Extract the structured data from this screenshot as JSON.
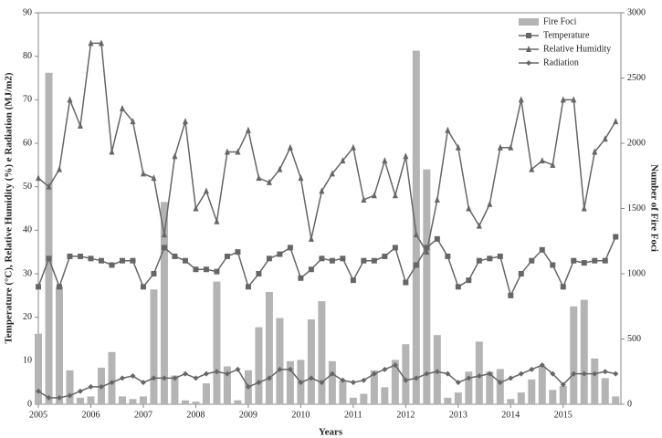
{
  "chart_data": {
    "type": "combo",
    "x_label": "Years",
    "y_label": "Temperature (°C), Relative Humidity (%) e Radiation (MJ/m2)",
    "y2_label": "Number of Fire Foci",
    "x": [
      2005,
      2005.2,
      2005.4,
      2005.6,
      2005.8,
      2006,
      2006.2,
      2006.4,
      2006.6,
      2006.8,
      2007,
      2007.2,
      2007.4,
      2007.6,
      2007.8,
      2008,
      2008.2,
      2008.4,
      2008.6,
      2008.8,
      2009,
      2009.2,
      2009.4,
      2009.6,
      2009.8,
      2010,
      2010.2,
      2010.4,
      2010.6,
      2010.8,
      2011,
      2011.2,
      2011.4,
      2011.6,
      2011.8,
      2012,
      2012.2,
      2012.4,
      2012.6,
      2012.8,
      2013,
      2013.2,
      2013.4,
      2013.6,
      2013.8,
      2014,
      2014.2,
      2014.4,
      2014.6,
      2014.8,
      2015,
      2015.2,
      2015.4,
      2015.6,
      2015.8,
      2016
    ],
    "xlim": [
      2005,
      2016.1
    ],
    "xticks": [
      2005,
      2006,
      2007,
      2008,
      2009,
      2010,
      2011,
      2012,
      2013,
      2014,
      2015
    ],
    "ylim": [
      0,
      90
    ],
    "yticks": [
      0,
      10,
      20,
      30,
      40,
      50,
      60,
      70,
      80,
      90
    ],
    "y2lim": [
      0,
      3000
    ],
    "y2ticks": [
      0,
      500,
      1000,
      1500,
      2000,
      2500,
      3000
    ],
    "legend": "top-right",
    "series": [
      {
        "name": "Fire Foci",
        "type": "bar",
        "axis": "y2",
        "color": "#b4b4b4",
        "values": [
          540,
          2540,
          900,
          260,
          50,
          60,
          280,
          400,
          60,
          40,
          60,
          880,
          1550,
          220,
          30,
          20,
          160,
          940,
          290,
          30,
          260,
          590,
          860,
          660,
          330,
          340,
          650,
          790,
          330,
          180,
          50,
          80,
          260,
          130,
          340,
          460,
          2710,
          1800,
          530,
          50,
          90,
          250,
          480,
          250,
          270,
          40,
          90,
          190,
          290,
          110,
          140,
          750,
          800,
          350,
          200,
          60
        ]
      },
      {
        "name": "Temperature",
        "type": "line",
        "marker": "square",
        "color": "#666666",
        "values": [
          27,
          33.5,
          27,
          34,
          34,
          33.5,
          33,
          32,
          33,
          33,
          27,
          30,
          36,
          34,
          33,
          31,
          31,
          30.5,
          34,
          35,
          27,
          30,
          33.5,
          34.5,
          36,
          29,
          31,
          33.5,
          33,
          33.5,
          28.5,
          33,
          33,
          34,
          36,
          28,
          32,
          36,
          38,
          34,
          27,
          28.5,
          33,
          33.5,
          34,
          25,
          30,
          33,
          35.5,
          32,
          27,
          33,
          32.5,
          33,
          33,
          38.5
        ]
      },
      {
        "name": "Relative Humidity",
        "type": "line",
        "marker": "triangle",
        "color": "#666666",
        "values": [
          52,
          50,
          54,
          70,
          64,
          83,
          83,
          58,
          68,
          65,
          53,
          52,
          39,
          57,
          65,
          45,
          49,
          42,
          58,
          58,
          63,
          52,
          51,
          54,
          59,
          52,
          38,
          49,
          53,
          56,
          59,
          47,
          48,
          56,
          48,
          57,
          39,
          35,
          47,
          63,
          59,
          45,
          41,
          46,
          59,
          59,
          70,
          54,
          56,
          55,
          70,
          70,
          45,
          58,
          61,
          65
        ]
      },
      {
        "name": "Radiation",
        "type": "line",
        "marker": "diamond",
        "color": "#666666",
        "values": [
          3,
          1.5,
          1.5,
          2,
          3,
          4,
          4,
          5,
          6,
          6.5,
          5,
          6,
          6,
          6,
          7,
          6,
          7,
          7.5,
          7,
          8,
          4,
          5,
          6,
          8,
          8,
          5,
          6,
          5,
          7,
          5.5,
          5,
          5.5,
          7,
          8,
          9,
          5.5,
          6,
          7,
          7.5,
          7,
          5,
          6,
          6.5,
          7,
          5,
          6,
          7,
          8,
          9,
          7,
          4.5,
          7,
          7,
          7,
          7.5,
          7
        ]
      }
    ]
  }
}
